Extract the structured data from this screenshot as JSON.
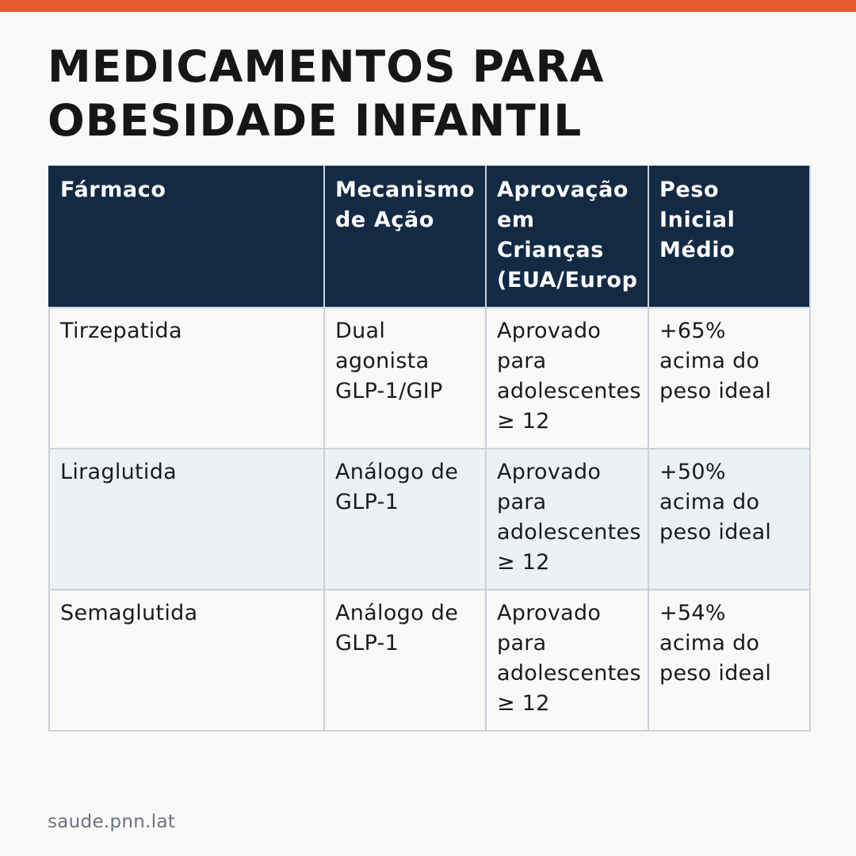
{
  "accent_color": "#e85c31",
  "header_color": "#132a45",
  "title": {
    "line1": "MEDICAMENTOS PARA",
    "line2": "OBESIDADE INFANTIL"
  },
  "table": {
    "headers": [
      "Fármaco",
      "Mecanismo\nde Ação",
      "Aprovação\nem\nCrianças\n(EUA/Europ",
      "Peso\nInicial\nMédio"
    ],
    "rows": [
      [
        "Tirzepatida",
        "Dual\nagonista\nGLP-1/GIP",
        "Aprovado\npara\nadolescentes\n≥ 12",
        "+65%\nacima do\npeso ideal"
      ],
      [
        "Liraglutida",
        "Análogo de\nGLP-1",
        "Aprovado\npara\nadolescentes\n≥ 12",
        "+50%\nacima do\npeso ideal"
      ],
      [
        "Semaglutida",
        "Análogo de\nGLP-1",
        "Aprovado\npara\nadolescentes\n≥ 12",
        "+54%\nacima do\npeso ideal"
      ]
    ]
  },
  "footer": "saude.pnn.lat"
}
